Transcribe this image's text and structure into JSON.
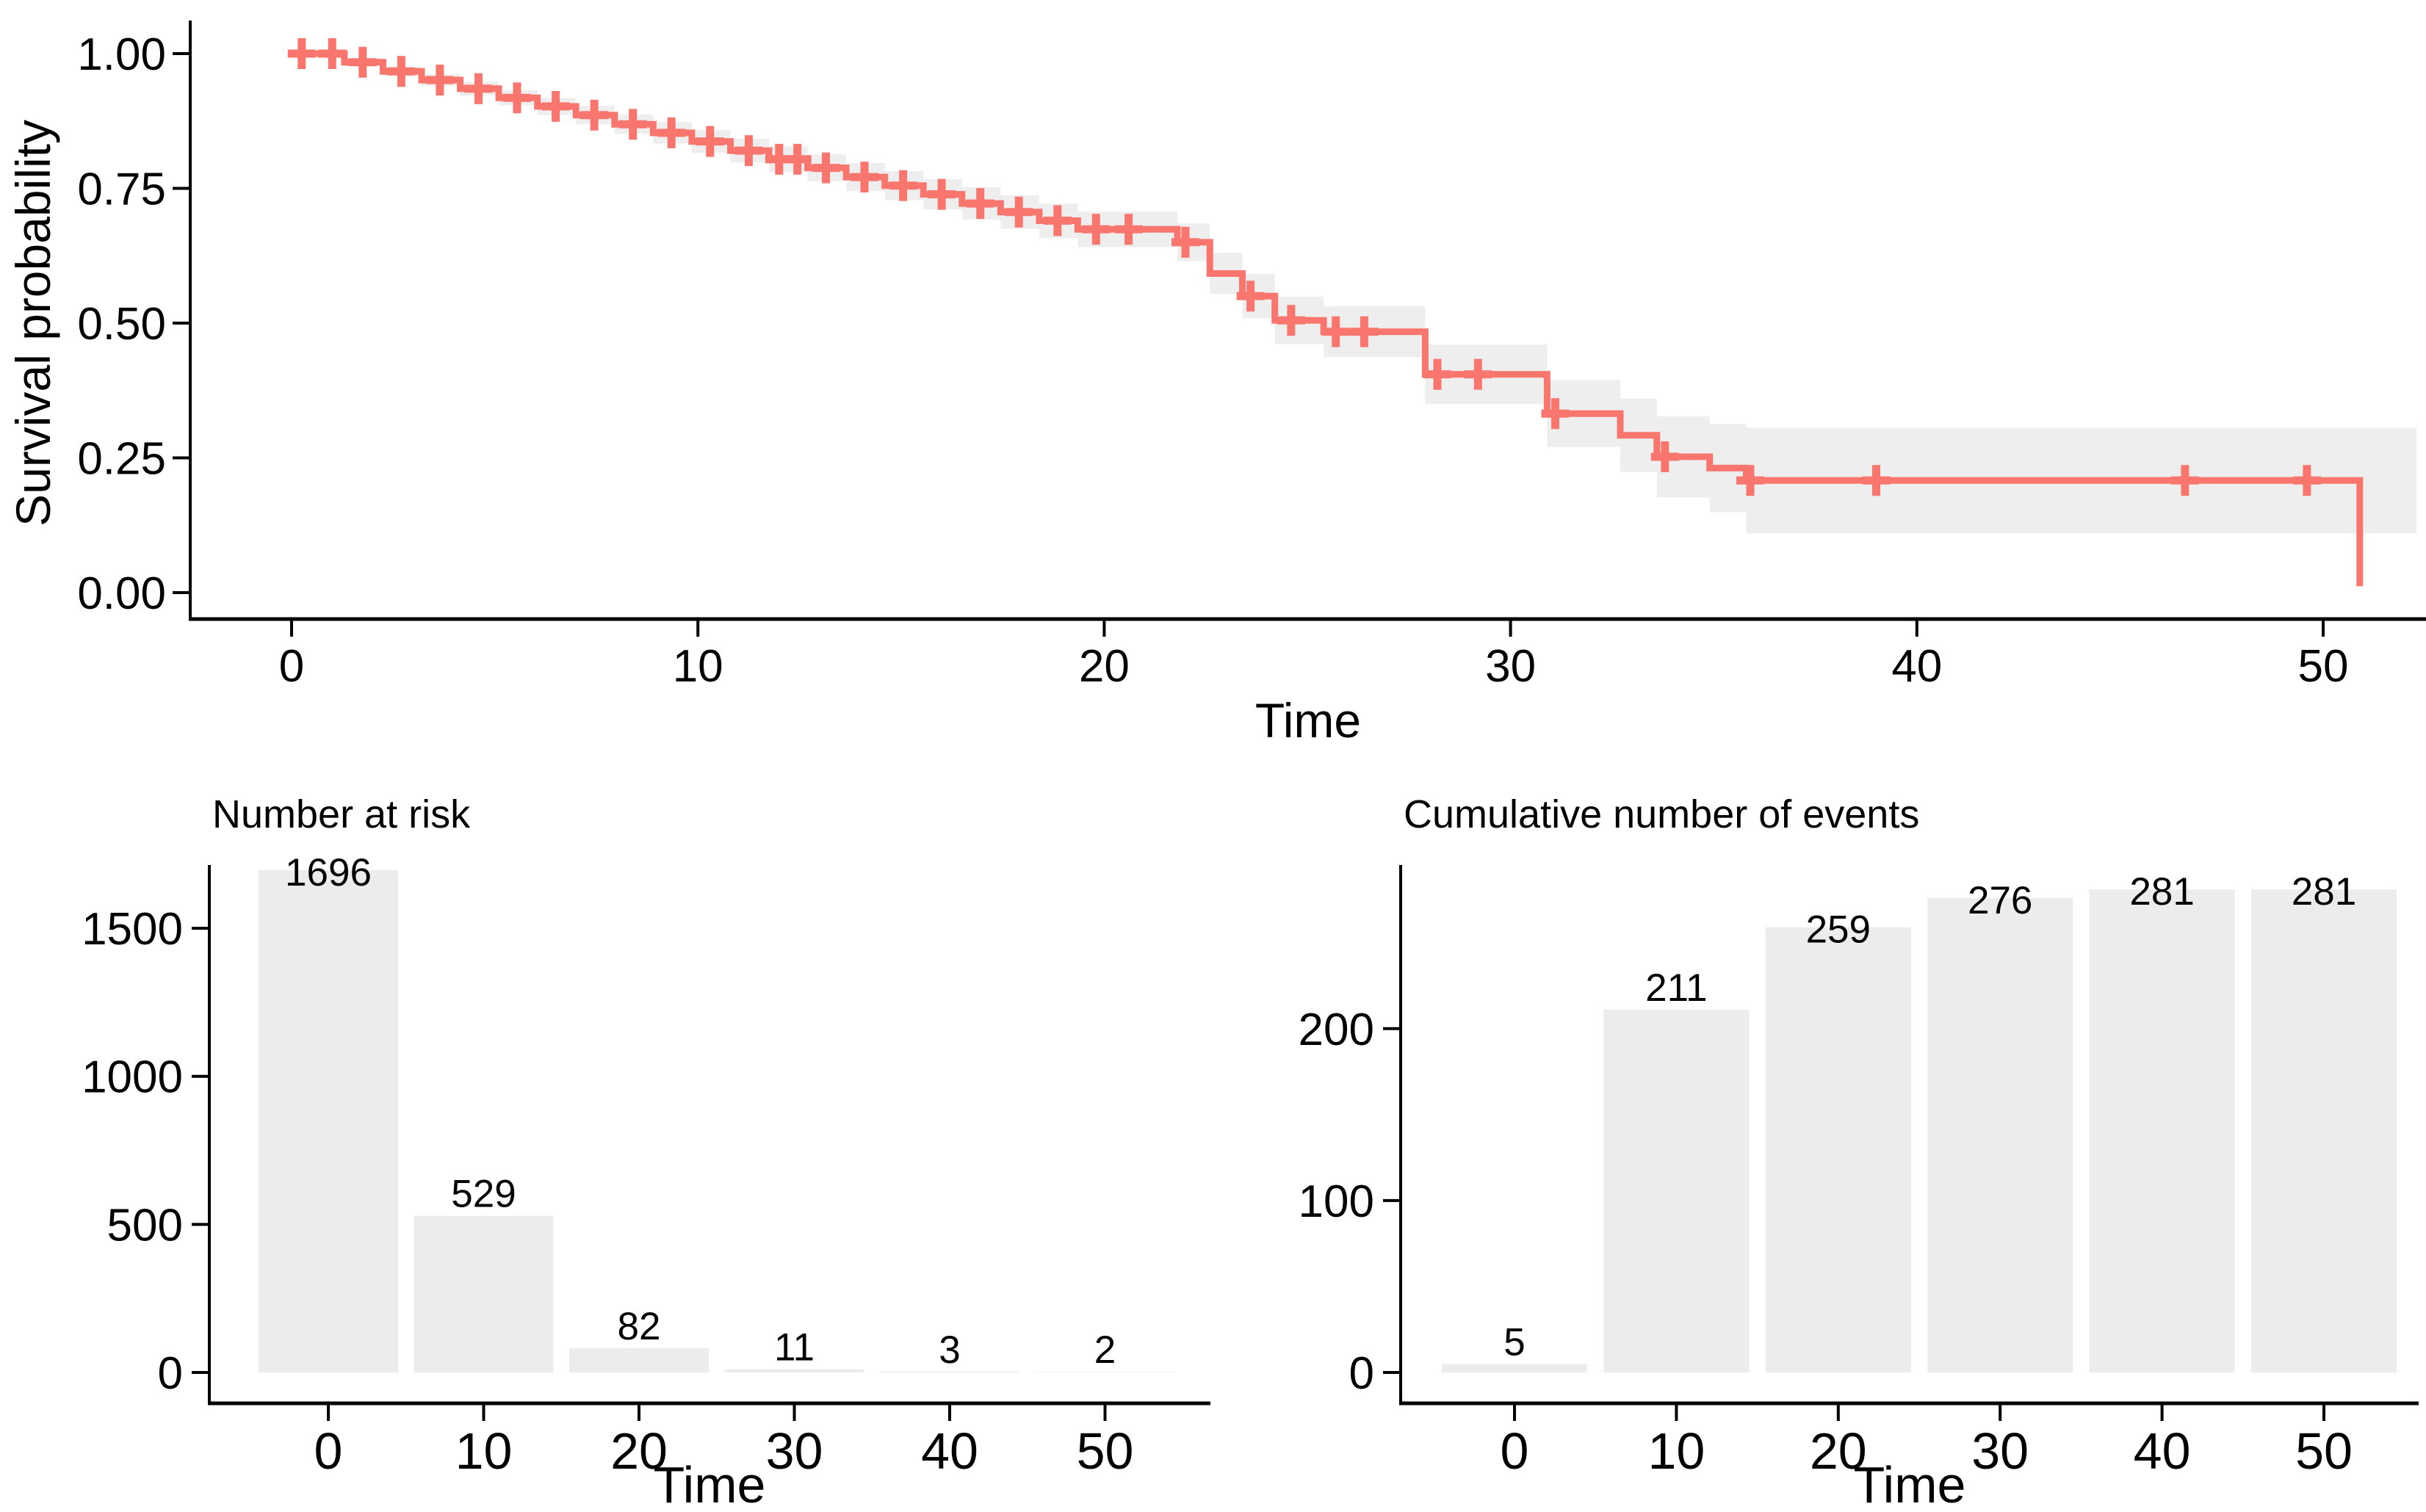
{
  "figure": {
    "background": "#FFFFFF",
    "accent_color": "#F8766D",
    "band_color": "#ECECEC",
    "bar_color": "#ECECEC",
    "axis_color": "#000000",
    "text_color": "#000000"
  },
  "chart_data": [
    {
      "type": "line",
      "subtype": "kaplan_meier_step",
      "title": "",
      "xlabel": "Time",
      "ylabel": "Survival probability",
      "x_ticks": [
        "0",
        "10",
        "20",
        "30",
        "40",
        "50"
      ],
      "x_tick_values": [
        0,
        10,
        20,
        30,
        40,
        50
      ],
      "y_ticks": [
        "0.00",
        "0.25",
        "0.50",
        "0.75",
        "1.00"
      ],
      "y_tick_values": [
        0,
        0.25,
        0.5,
        0.75,
        1.0
      ],
      "xlim": [
        -2.5,
        52.5
      ],
      "ylim": [
        0,
        1
      ],
      "grid": false,
      "legend": "none",
      "line_color": "#F8766D",
      "ci_band_color": "#ECECEC",
      "band_end_t": 52.3,
      "final_drop": {
        "t": 50.9,
        "s": 0.012
      },
      "steps": [
        {
          "t": 0.0,
          "s": 1.0,
          "lo": 0.996,
          "hi": 1.0
        },
        {
          "t": 1.3,
          "s": 0.984,
          "lo": 0.977,
          "hi": 0.991
        },
        {
          "t": 2.25,
          "s": 0.967,
          "lo": 0.958,
          "hi": 0.976
        },
        {
          "t": 3.2,
          "s": 0.951,
          "lo": 0.94,
          "hi": 0.962
        },
        {
          "t": 4.15,
          "s": 0.935,
          "lo": 0.922,
          "hi": 0.948
        },
        {
          "t": 5.1,
          "s": 0.918,
          "lo": 0.904,
          "hi": 0.932
        },
        {
          "t": 6.05,
          "s": 0.902,
          "lo": 0.886,
          "hi": 0.918
        },
        {
          "t": 7.0,
          "s": 0.886,
          "lo": 0.869,
          "hi": 0.903
        },
        {
          "t": 7.95,
          "s": 0.869,
          "lo": 0.851,
          "hi": 0.887
        },
        {
          "t": 8.9,
          "s": 0.853,
          "lo": 0.833,
          "hi": 0.873
        },
        {
          "t": 9.85,
          "s": 0.837,
          "lo": 0.816,
          "hi": 0.858
        },
        {
          "t": 10.8,
          "s": 0.82,
          "lo": 0.798,
          "hi": 0.842
        },
        {
          "t": 11.75,
          "s": 0.804,
          "lo": 0.78,
          "hi": 0.828
        },
        {
          "t": 12.7,
          "s": 0.788,
          "lo": 0.763,
          "hi": 0.813
        },
        {
          "t": 13.65,
          "s": 0.771,
          "lo": 0.745,
          "hi": 0.797
        },
        {
          "t": 14.6,
          "s": 0.755,
          "lo": 0.728,
          "hi": 0.782
        },
        {
          "t": 15.55,
          "s": 0.739,
          "lo": 0.711,
          "hi": 0.767
        },
        {
          "t": 16.5,
          "s": 0.722,
          "lo": 0.692,
          "hi": 0.752
        },
        {
          "t": 17.45,
          "s": 0.706,
          "lo": 0.675,
          "hi": 0.737
        },
        {
          "t": 18.4,
          "s": 0.69,
          "lo": 0.658,
          "hi": 0.722
        },
        {
          "t": 19.35,
          "s": 0.674,
          "lo": 0.641,
          "hi": 0.707
        },
        {
          "t": 21.8,
          "s": 0.65,
          "lo": 0.615,
          "hi": 0.685
        },
        {
          "t": 22.6,
          "s": 0.592,
          "lo": 0.554,
          "hi": 0.63
        },
        {
          "t": 23.4,
          "s": 0.55,
          "lo": 0.509,
          "hi": 0.591
        },
        {
          "t": 24.2,
          "s": 0.505,
          "lo": 0.461,
          "hi": 0.549
        },
        {
          "t": 25.4,
          "s": 0.484,
          "lo": 0.437,
          "hi": 0.531
        },
        {
          "t": 27.9,
          "s": 0.405,
          "lo": 0.35,
          "hi": 0.46
        },
        {
          "t": 30.9,
          "s": 0.332,
          "lo": 0.27,
          "hi": 0.394
        },
        {
          "t": 32.7,
          "s": 0.292,
          "lo": 0.224,
          "hi": 0.36
        },
        {
          "t": 33.6,
          "s": 0.252,
          "lo": 0.177,
          "hi": 0.327
        },
        {
          "t": 34.9,
          "s": 0.231,
          "lo": 0.149,
          "hi": 0.313
        },
        {
          "t": 35.8,
          "s": 0.208,
          "lo": 0.11,
          "hi": 0.306
        }
      ],
      "censors": [
        {
          "t": 0.25,
          "s": 1.0
        },
        {
          "t": 1.0,
          "s": 1.0
        },
        {
          "t": 1.75,
          "s": 0.984
        },
        {
          "t": 2.7,
          "s": 0.967
        },
        {
          "t": 3.65,
          "s": 0.951
        },
        {
          "t": 4.6,
          "s": 0.935
        },
        {
          "t": 5.55,
          "s": 0.918
        },
        {
          "t": 6.5,
          "s": 0.902
        },
        {
          "t": 7.45,
          "s": 0.886
        },
        {
          "t": 8.4,
          "s": 0.869
        },
        {
          "t": 9.35,
          "s": 0.853
        },
        {
          "t": 10.3,
          "s": 0.837
        },
        {
          "t": 11.25,
          "s": 0.82
        },
        {
          "t": 12.0,
          "s": 0.804
        },
        {
          "t": 12.45,
          "s": 0.804
        },
        {
          "t": 13.15,
          "s": 0.788
        },
        {
          "t": 14.1,
          "s": 0.771
        },
        {
          "t": 15.05,
          "s": 0.755
        },
        {
          "t": 16.0,
          "s": 0.739
        },
        {
          "t": 16.95,
          "s": 0.722
        },
        {
          "t": 17.9,
          "s": 0.706
        },
        {
          "t": 18.85,
          "s": 0.69
        },
        {
          "t": 19.8,
          "s": 0.674
        },
        {
          "t": 20.6,
          "s": 0.674
        },
        {
          "t": 22.0,
          "s": 0.65
        },
        {
          "t": 23.6,
          "s": 0.55
        },
        {
          "t": 24.6,
          "s": 0.505
        },
        {
          "t": 25.7,
          "s": 0.484
        },
        {
          "t": 26.4,
          "s": 0.484
        },
        {
          "t": 28.2,
          "s": 0.405
        },
        {
          "t": 29.2,
          "s": 0.405
        },
        {
          "t": 31.1,
          "s": 0.332
        },
        {
          "t": 33.8,
          "s": 0.252
        },
        {
          "t": 35.9,
          "s": 0.208
        },
        {
          "t": 39.0,
          "s": 0.208
        },
        {
          "t": 46.6,
          "s": 0.208
        },
        {
          "t": 49.6,
          "s": 0.208
        }
      ]
    },
    {
      "type": "bar",
      "title": "Number at risk",
      "xlabel": "Time",
      "ylabel": "",
      "categories": [
        "0",
        "10",
        "20",
        "30",
        "40",
        "50"
      ],
      "x_tick_values": [
        0,
        10,
        20,
        30,
        40,
        50
      ],
      "values": [
        1696,
        529,
        82,
        11,
        3,
        2
      ],
      "bar_labels": [
        "1696",
        "529",
        "82",
        "11",
        "3",
        "2"
      ],
      "y_ticks": [
        "0",
        "500",
        "1000",
        "1500"
      ],
      "y_tick_values": [
        0,
        500,
        1000,
        1500
      ],
      "ylim": [
        0,
        1780
      ],
      "grid": false,
      "bar_color": "#ECECEC"
    },
    {
      "type": "bar",
      "title": "Cumulative number of events",
      "xlabel": "Time",
      "ylabel": "",
      "categories": [
        "0",
        "10",
        "20",
        "30",
        "40",
        "50"
      ],
      "x_tick_values": [
        0,
        10,
        20,
        30,
        40,
        50
      ],
      "values": [
        5,
        211,
        259,
        276,
        281,
        281
      ],
      "bar_labels": [
        "5",
        "211",
        "259",
        "276",
        "281",
        "281"
      ],
      "y_ticks": [
        "0",
        "100",
        "200"
      ],
      "y_tick_values": [
        0,
        100,
        200
      ],
      "ylim": [
        0,
        293
      ],
      "grid": false,
      "bar_color": "#ECECEC"
    }
  ]
}
